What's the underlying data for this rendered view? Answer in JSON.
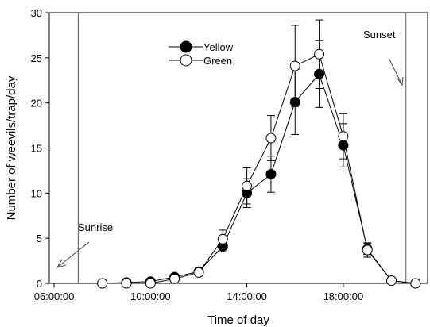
{
  "chart_data": {
    "type": "line",
    "xlabel": "Time of day",
    "ylabel": "Number of weevils/trap/day",
    "xlim": [
      5.8,
      21.5
    ],
    "ylim": [
      0,
      30
    ],
    "x_ticks": [
      6,
      10,
      14,
      18
    ],
    "x_tick_labels": [
      "06:00:00",
      "10:00:00",
      "14:00:00",
      "18:00:00"
    ],
    "y_ticks": [
      0,
      5,
      10,
      15,
      20,
      25,
      30
    ],
    "y_tick_labels": [
      "0",
      "5",
      "10",
      "15",
      "20",
      "25",
      "30"
    ],
    "legend_position": "top-left",
    "series": [
      {
        "name": "Yellow",
        "marker": "filled-circle",
        "color": "#000000",
        "x": [
          8,
          9,
          10,
          11,
          12,
          13,
          14,
          15,
          16,
          17,
          18,
          19,
          20,
          21
        ],
        "y": [
          0,
          0.1,
          0.2,
          0.7,
          1.3,
          4.1,
          10.0,
          12.1,
          20.1,
          23.2,
          15.3,
          3.8,
          0.3,
          0
        ],
        "err": [
          0,
          0.1,
          0.2,
          0.3,
          0.4,
          0.6,
          1.6,
          2.0,
          3.6,
          3.7,
          2.4,
          0.6,
          0.1,
          0
        ]
      },
      {
        "name": "Green",
        "marker": "open-circle",
        "color": "#000000",
        "x": [
          8,
          9,
          10,
          11,
          12,
          13,
          14,
          15,
          16,
          17,
          18,
          19,
          20,
          21
        ],
        "y": [
          0,
          0,
          0,
          0.5,
          1.2,
          4.9,
          10.8,
          16.1,
          24.1,
          25.4,
          16.3,
          3.7,
          0.3,
          0
        ],
        "err": [
          0,
          0,
          0.1,
          0.3,
          0.3,
          1.0,
          2.0,
          2.5,
          4.5,
          3.8,
          2.5,
          0.8,
          0.1,
          0
        ]
      }
    ],
    "reference_lines": [
      {
        "x": 7.0,
        "label": "Sunrise"
      },
      {
        "x": 20.6,
        "label": "Sunset"
      }
    ]
  }
}
